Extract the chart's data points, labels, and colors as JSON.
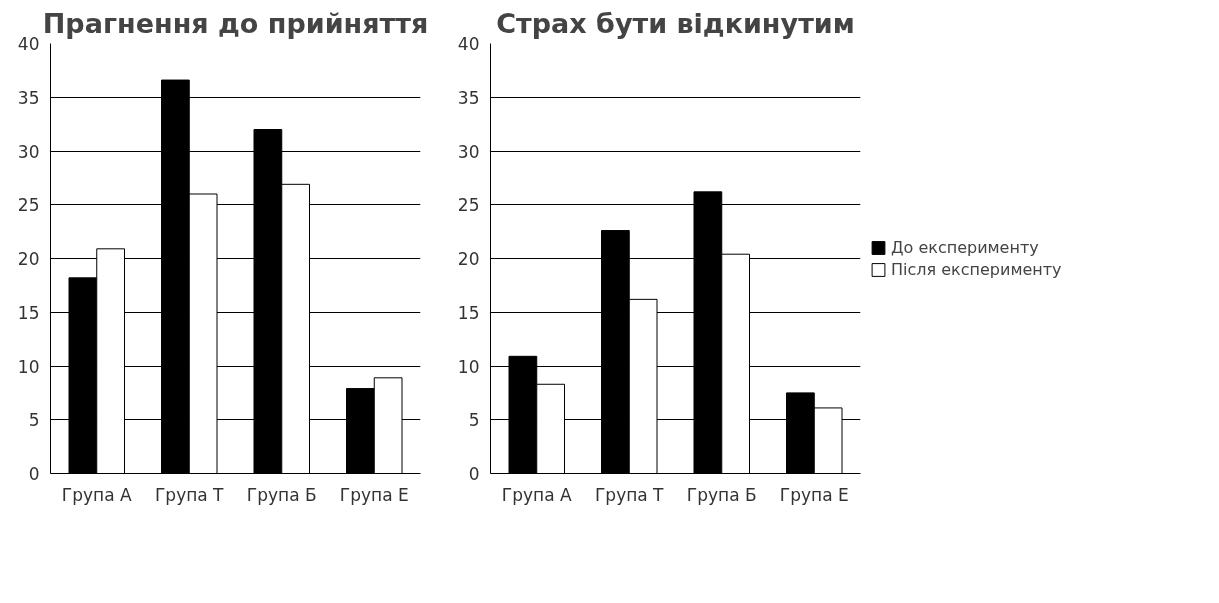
{
  "chart_data": [
    {
      "type": "bar",
      "title": "Прагнення до прийняття",
      "categories": [
        "Група А",
        "Група Т",
        "Група Б",
        "Група Е"
      ],
      "series": [
        {
          "color": "#000000",
          "values": [
            18.2,
            36.6,
            32.0,
            7.9
          ]
        },
        {
          "color": "#ffffff",
          "values": [
            20.9,
            26.0,
            26.9,
            8.9
          ]
        }
      ],
      "ylim": [
        0,
        40
      ],
      "yticks": [
        0,
        5,
        10,
        15,
        20,
        25,
        30,
        35,
        40
      ],
      "grid": "y",
      "legend": false
    },
    {
      "type": "bar",
      "title": "Страх бути відкинутим",
      "categories": [
        "Група А",
        "Група Т",
        "Група Б",
        "Група Е"
      ],
      "series": [
        {
          "name": "До експерименту",
          "color": "#000000",
          "values": [
            10.9,
            22.6,
            26.2,
            7.5
          ]
        },
        {
          "name": "Після експерименту",
          "color": "#ffffff",
          "values": [
            8.3,
            16.2,
            20.4,
            6.1
          ]
        }
      ],
      "ylim": [
        0,
        40
      ],
      "yticks": [
        0,
        5,
        10,
        15,
        20,
        25,
        30,
        35,
        40
      ],
      "grid": "y",
      "legend": "right"
    }
  ]
}
